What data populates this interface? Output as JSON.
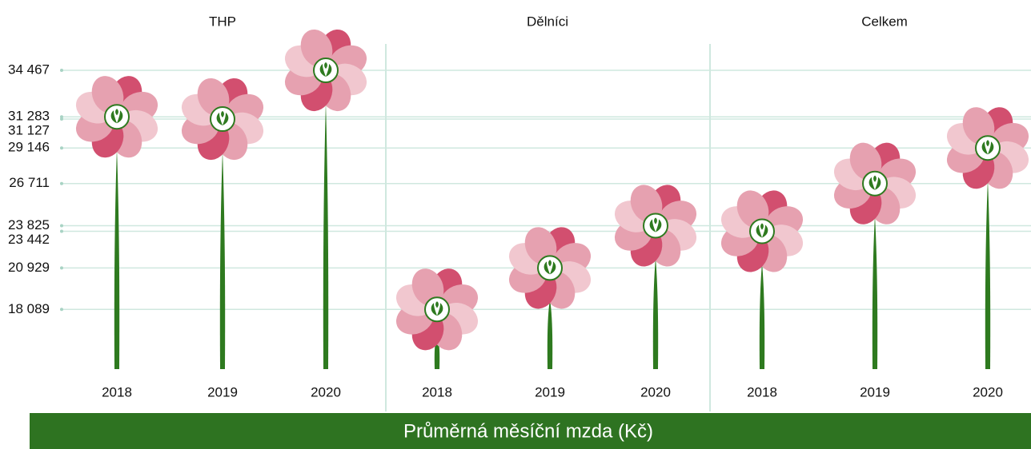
{
  "chart_data": {
    "type": "flower",
    "title": "Průměrná měsíční mzda (Kč)",
    "categories": [
      "2018",
      "2019",
      "2020"
    ],
    "series": [
      {
        "name": "THP",
        "values": [
          31283,
          31127,
          34467
        ]
      },
      {
        "name": "Dělníci",
        "values": [
          18089,
          20929,
          23825
        ]
      },
      {
        "name": "Celkem",
        "values": [
          23442,
          26711,
          29146
        ]
      }
    ],
    "ylim": [
      14000,
      36000
    ],
    "yticks": [
      {
        "value": 34467,
        "label": "34 467"
      },
      {
        "value": 31283,
        "label": "31 283"
      },
      {
        "value": 31127,
        "label": "31 127"
      },
      {
        "value": 29146,
        "label": "29 146"
      },
      {
        "value": 26711,
        "label": "26 711"
      },
      {
        "value": 23825,
        "label": "23 825"
      },
      {
        "value": 23442,
        "label": "23 442"
      },
      {
        "value": 20929,
        "label": "20 929"
      },
      {
        "value": 18089,
        "label": "18 089"
      }
    ],
    "grid": true,
    "petal_colors": [
      "#d24f6f",
      "#e6a1b0",
      "#f1c7cf"
    ],
    "stem_color": "#2e7a1f",
    "grid_color": "#cfe8df"
  }
}
